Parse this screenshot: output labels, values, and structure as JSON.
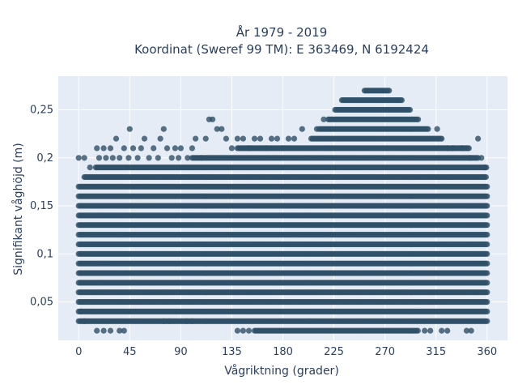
{
  "colors": {
    "plot_bg": "#e5ecf6",
    "grid": "#ffffff",
    "marker": "#2f5068",
    "text": "#2a3f5f"
  },
  "chart_data": {
    "type": "scatter",
    "title": "År 1979 - 2019",
    "subtitle": "Koordinat (Sweref 99 TM): E 363469, N 6192424",
    "xlabel": "Vågriktning (grader)",
    "ylabel": "Signifikant våghöjd (m)",
    "xlim": [
      -18,
      378
    ],
    "ylim": [
      0.01,
      0.285
    ],
    "xticks": [
      0,
      45,
      90,
      135,
      180,
      225,
      270,
      315,
      360
    ],
    "xtick_labels": [
      "0",
      "45",
      "90",
      "135",
      "180",
      "225",
      "270",
      "315",
      "360"
    ],
    "yticks": [
      0.05,
      0.1,
      0.15,
      0.2,
      0.25
    ],
    "ytick_labels": [
      "0,05",
      "0,1",
      "0,15",
      "0,2",
      "0,25"
    ],
    "grid": true,
    "legend": "none",
    "marker": "circle",
    "bands": [
      {
        "y": 0.02,
        "x": [
          155,
          300
        ]
      },
      {
        "y": 0.03,
        "x": [
          0,
          360
        ]
      },
      {
        "y": 0.04,
        "x": [
          0,
          360
        ]
      },
      {
        "y": 0.05,
        "x": [
          0,
          360
        ]
      },
      {
        "y": 0.06,
        "x": [
          0,
          360
        ]
      },
      {
        "y": 0.07,
        "x": [
          0,
          360
        ]
      },
      {
        "y": 0.08,
        "x": [
          0,
          360
        ]
      },
      {
        "y": 0.09,
        "x": [
          0,
          360
        ]
      },
      {
        "y": 0.1,
        "x": [
          0,
          360
        ]
      },
      {
        "y": 0.11,
        "x": [
          0,
          360
        ]
      },
      {
        "y": 0.12,
        "x": [
          0,
          360
        ]
      },
      {
        "y": 0.13,
        "x": [
          0,
          360
        ]
      },
      {
        "y": 0.14,
        "x": [
          0,
          360
        ]
      },
      {
        "y": 0.15,
        "x": [
          0,
          360
        ]
      },
      {
        "y": 0.16,
        "x": [
          0,
          360
        ]
      },
      {
        "y": 0.17,
        "x": [
          0,
          360
        ]
      },
      {
        "y": 0.18,
        "x": [
          5,
          360
        ]
      },
      {
        "y": 0.19,
        "x": [
          15,
          360
        ]
      },
      {
        "y": 0.2,
        "x": [
          100,
          352
        ]
      },
      {
        "y": 0.21,
        "x": [
          140,
          345
        ]
      },
      {
        "y": 0.22,
        "x": [
          205,
          320
        ]
      },
      {
        "y": 0.23,
        "x": [
          212,
          308
        ]
      },
      {
        "y": 0.24,
        "x": [
          220,
          300
        ]
      },
      {
        "y": 0.25,
        "x": [
          226,
          292
        ]
      },
      {
        "y": 0.26,
        "x": [
          232,
          285
        ]
      },
      {
        "y": 0.27,
        "x": [
          252,
          274
        ]
      }
    ],
    "scattered_points": [
      [
        0,
        0.2
      ],
      [
        5,
        0.2
      ],
      [
        10,
        0.19
      ],
      [
        16,
        0.21
      ],
      [
        18,
        0.2
      ],
      [
        22,
        0.21
      ],
      [
        24,
        0.2
      ],
      [
        28,
        0.21
      ],
      [
        30,
        0.2
      ],
      [
        33,
        0.22
      ],
      [
        36,
        0.2
      ],
      [
        40,
        0.21
      ],
      [
        44,
        0.2
      ],
      [
        45,
        0.23
      ],
      [
        48,
        0.21
      ],
      [
        52,
        0.2
      ],
      [
        55,
        0.21
      ],
      [
        58,
        0.22
      ],
      [
        62,
        0.2
      ],
      [
        66,
        0.21
      ],
      [
        70,
        0.2
      ],
      [
        72,
        0.22
      ],
      [
        75,
        0.23
      ],
      [
        78,
        0.21
      ],
      [
        82,
        0.2
      ],
      [
        85,
        0.21
      ],
      [
        88,
        0.2
      ],
      [
        90,
        0.21
      ],
      [
        96,
        0.2
      ],
      [
        100,
        0.21
      ],
      [
        103,
        0.22
      ],
      [
        108,
        0.2
      ],
      [
        112,
        0.22
      ],
      [
        115,
        0.24
      ],
      [
        118,
        0.24
      ],
      [
        122,
        0.23
      ],
      [
        126,
        0.23
      ],
      [
        130,
        0.22
      ],
      [
        135,
        0.21
      ],
      [
        140,
        0.22
      ],
      [
        145,
        0.22
      ],
      [
        150,
        0.21
      ],
      [
        155,
        0.22
      ],
      [
        160,
        0.22
      ],
      [
        165,
        0.21
      ],
      [
        170,
        0.22
      ],
      [
        175,
        0.22
      ],
      [
        180,
        0.21
      ],
      [
        185,
        0.22
      ],
      [
        190,
        0.22
      ],
      [
        197,
        0.23
      ],
      [
        210,
        0.23
      ],
      [
        216,
        0.24
      ],
      [
        316,
        0.23
      ],
      [
        320,
        0.22
      ],
      [
        325,
        0.21
      ],
      [
        330,
        0.21
      ],
      [
        338,
        0.21
      ],
      [
        345,
        0.2
      ],
      [
        352,
        0.22
      ],
      [
        355,
        0.2
      ],
      [
        358,
        0.19
      ],
      [
        16,
        0.02
      ],
      [
        22,
        0.02
      ],
      [
        28,
        0.02
      ],
      [
        36,
        0.02
      ],
      [
        40,
        0.02
      ],
      [
        75,
        0.03
      ],
      [
        80,
        0.03
      ],
      [
        95,
        0.03
      ],
      [
        100,
        0.03
      ],
      [
        140,
        0.02
      ],
      [
        145,
        0.02
      ],
      [
        150,
        0.02
      ],
      [
        305,
        0.02
      ],
      [
        310,
        0.02
      ],
      [
        320,
        0.02
      ],
      [
        325,
        0.02
      ],
      [
        342,
        0.02
      ],
      [
        346,
        0.02
      ],
      [
        5,
        0.03
      ],
      [
        2,
        0.04
      ]
    ]
  }
}
